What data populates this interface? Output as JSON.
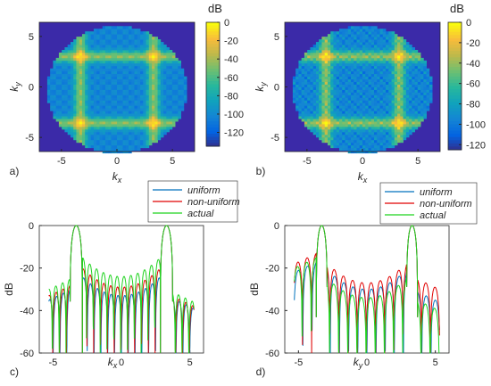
{
  "chart_data": [
    {
      "id": "a",
      "type": "heatmap",
      "panel_label": "a)",
      "xlabel_main": "k",
      "xlabel_sub": "x",
      "ylabel_main": "k",
      "ylabel_sub": "y",
      "xlim": [
        -7,
        7
      ],
      "ylim": [
        6.4,
        -6.4
      ],
      "xticks": [
        -5,
        0,
        5
      ],
      "yticks": [
        -5,
        0,
        5
      ],
      "colorbar_title": "dB",
      "colorbar_range": [
        -135,
        0
      ],
      "colorbar_ticks": [
        0,
        -20,
        -40,
        -60,
        -80,
        -100,
        -120
      ],
      "colors": {
        "outside": "#3b2aa8",
        "low": "#2b6fd6",
        "mid": "#1fb5a8",
        "high": "#f5e22a"
      },
      "peak_kx": [
        -3.3,
        3.3
      ],
      "peak_ky": [
        -3.3,
        3.3
      ]
    },
    {
      "id": "b",
      "type": "heatmap",
      "panel_label": "b)",
      "xlabel_main": "k",
      "xlabel_sub": "x",
      "ylabel_main": "k",
      "ylabel_sub": "y",
      "xlim": [
        -7,
        7
      ],
      "ylim": [
        6.4,
        -6.4
      ],
      "xticks": [
        -5,
        0,
        5
      ],
      "yticks": [
        -5,
        0,
        5
      ],
      "colorbar_title": "dB",
      "colorbar_range": [
        -125,
        0
      ],
      "colorbar_ticks": [
        0,
        -20,
        -40,
        -60,
        -80,
        -100,
        -120
      ],
      "colors": {
        "outside": "#3b2aa8",
        "low": "#2b6fd6",
        "mid": "#1fb5a8",
        "high": "#f5e22a"
      },
      "peak_kx": [
        -3.3,
        3.3
      ],
      "peak_ky": [
        -3.3,
        3.3
      ]
    },
    {
      "id": "c",
      "type": "line",
      "panel_label": "c)",
      "xlabel_main": "k",
      "xlabel_sub": "x",
      "ylabel": "dB",
      "xlim": [
        -6,
        6
      ],
      "ylim": [
        -60,
        0
      ],
      "xticks": [
        -5,
        0,
        5
      ],
      "yticks": [
        0,
        -20,
        -40,
        -60
      ],
      "x_range": [
        -5.3,
        5.3
      ],
      "main_lobes": [
        -3.3,
        3.3
      ],
      "mainlobe_halfwidth": 0.45,
      "series": [
        {
          "name": "uniform",
          "color": "#0072bd",
          "sidelobe_levels_db": [
            -29,
            -21,
            -33
          ],
          "null_depth_db": -56
        },
        {
          "name": "non-uniform",
          "color": "#e00000",
          "sidelobe_levels_db": [
            -27,
            -17,
            -32
          ],
          "null_depth_db": -52
        },
        {
          "name": "actual",
          "color": "#1fd31f",
          "sidelobe_levels_db": [
            -24,
            -12,
            -30
          ],
          "null_depth_db": -60
        }
      ]
    },
    {
      "id": "d",
      "type": "line",
      "panel_label": "d)",
      "xlabel_main": "k",
      "xlabel_sub": "y",
      "ylabel": "dB",
      "xlim": [
        -6,
        6
      ],
      "ylim": [
        -60,
        0
      ],
      "xticks": [
        -5,
        0,
        5
      ],
      "yticks": [
        0,
        -20,
        -40,
        -60
      ],
      "x_range": [
        -5.3,
        5.3
      ],
      "main_lobes": [
        -3.3,
        3.3
      ],
      "mainlobe_halfwidth": 0.4,
      "series": [
        {
          "name": "uniform",
          "color": "#0072bd",
          "sidelobe_levels_db": [
            -16,
            -18,
            -30
          ],
          "null_depth_db": -56
        },
        {
          "name": "non-uniform",
          "color": "#e00000",
          "sidelobe_levels_db": [
            -12,
            -15,
            -24
          ],
          "null_depth_db": -50
        },
        {
          "name": "actual",
          "color": "#1fd31f",
          "sidelobe_levels_db": [
            -14,
            -22,
            -34
          ],
          "null_depth_db": -58
        }
      ]
    }
  ]
}
